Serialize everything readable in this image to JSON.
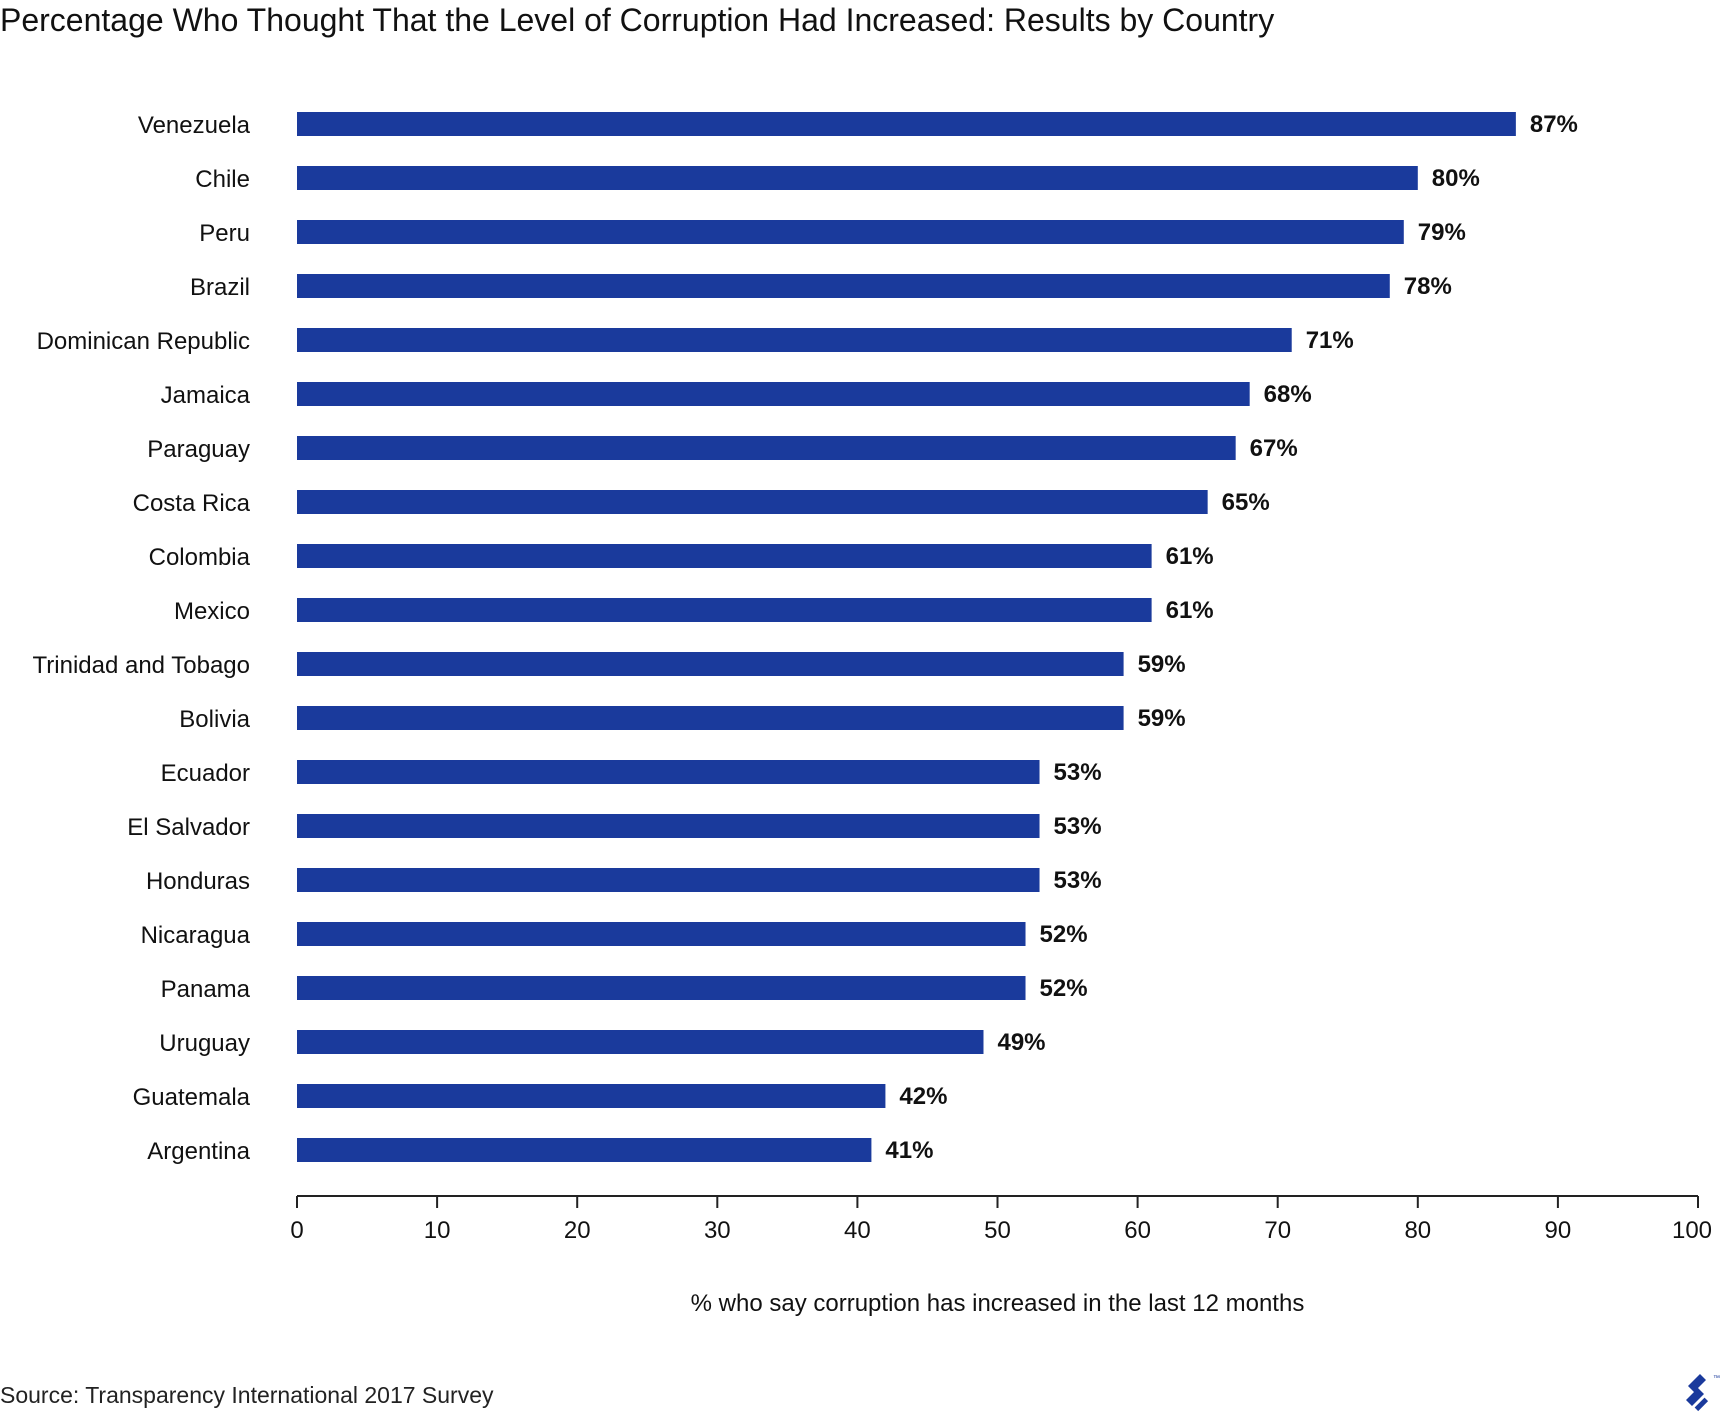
{
  "header": {
    "title": "Percentage Who Thought That the Level of Corruption Had Increased: Results by Country"
  },
  "footer": {
    "source": "Source: Transparency International 2017 Survey",
    "logo_icon": "toptal-logo-icon"
  },
  "colors": {
    "bar": "#1a3a9c",
    "axis": "#222222",
    "text": "#111111"
  },
  "chart_data": {
    "type": "bar",
    "orientation": "horizontal",
    "title": "Percentage Who Thought That the Level of Corruption Had Increased: Results by Country",
    "xlabel": "% who say corruption has increased in the last 12 months",
    "ylabel": "",
    "xlim": [
      0,
      100
    ],
    "xticks": [
      0,
      10,
      20,
      30,
      40,
      50,
      60,
      70,
      80,
      90,
      100
    ],
    "value_suffix": "%",
    "grid": false,
    "legend": "none",
    "categories": [
      "Venezuela",
      "Chile",
      "Peru",
      "Brazil",
      "Dominican Republic",
      "Jamaica",
      "Paraguay",
      "Costa Rica",
      "Colombia",
      "Mexico",
      "Trinidad and Tobago",
      "Bolivia",
      "Ecuador",
      "El Salvador",
      "Honduras",
      "Nicaragua",
      "Panama",
      "Uruguay",
      "Guatemala",
      "Argentina"
    ],
    "values": [
      87,
      80,
      79,
      78,
      71,
      68,
      67,
      65,
      61,
      61,
      59,
      59,
      53,
      53,
      53,
      52,
      52,
      49,
      42,
      41
    ],
    "value_labels": [
      "87%",
      "80%",
      "79%",
      "78%",
      "71%",
      "68%",
      "67%",
      "65%",
      "61%",
      "61%",
      "59%",
      "59%",
      "53%",
      "53%",
      "53%",
      "52%",
      "52%",
      "49%",
      "42%",
      "41%"
    ]
  }
}
